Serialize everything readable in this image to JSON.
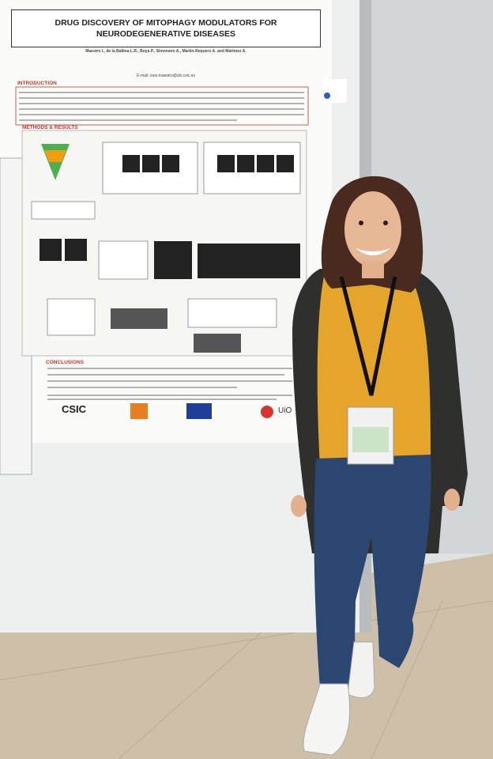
{
  "poster": {
    "title": "DRUG DISCOVERY OF MITOPHAGY MODULATORS FOR NEURODEGENERATIVE DISEASES",
    "authors": "Maestro I., de la Ballina L.R., Boya P., Simonsen A., Martín-Requero A. and Martínez A.",
    "email": "E-mail: ines.maestro@cib.csic.es",
    "sections": [
      "INTRODUCTION",
      "METHODS & RESULTS",
      "CONCLUSIONS"
    ],
    "logos": [
      "CSIC",
      "UiO"
    ]
  }
}
